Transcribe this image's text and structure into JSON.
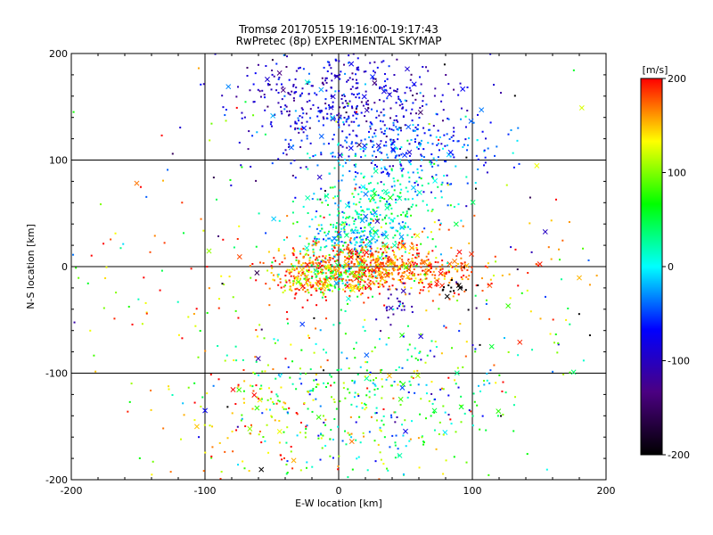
{
  "chart_data": {
    "type": "scatter",
    "title": "Tromsø 20170515 19:16:00-19:17:43",
    "subtitle": "RwPretec (8p) EXPERIMENTAL SKYMAP",
    "xlabel": "E-W location [km]",
    "ylabel": "N-S location [km]",
    "xlim": [
      -200,
      200
    ],
    "ylim": [
      -200,
      200
    ],
    "x_ticks": [
      -200,
      -100,
      0,
      100,
      200
    ],
    "y_ticks": [
      -200,
      -100,
      0,
      100,
      200
    ],
    "x_tick_labels": [
      "-200",
      "-100",
      "0",
      "100",
      "200"
    ],
    "y_tick_labels": [
      "-200",
      "-100",
      "0",
      "100",
      "200"
    ],
    "grid": true,
    "grid_lines": [
      -100,
      0,
      100
    ],
    "colorbar": {
      "label": "[m/s]",
      "range": [
        -200,
        200
      ],
      "ticks": [
        200,
        100,
        0,
        -100,
        -200
      ],
      "tick_labels": [
        "200",
        "100",
        "0",
        "-100",
        "-200"
      ],
      "colormap": "rainbow",
      "colors": [
        "#000000",
        "#4b0082",
        "#0000ff",
        "#00ffff",
        "#00ff00",
        "#ffff00",
        "#ff0000"
      ]
    },
    "markers": {
      "small": "dot",
      "large": "x"
    },
    "clusters": [
      {
        "cx": 5,
        "cy": 160,
        "sx": 38,
        "sy": 22,
        "n": 420,
        "v": -95,
        "vsd": 30
      },
      {
        "cx": 40,
        "cy": 110,
        "sx": 40,
        "sy": 18,
        "n": 320,
        "v": -50,
        "vsd": 30
      },
      {
        "cx": 30,
        "cy": 60,
        "sx": 25,
        "sy": 20,
        "n": 240,
        "v": 20,
        "vsd": 30
      },
      {
        "cx": 10,
        "cy": 25,
        "sx": 18,
        "sy": 14,
        "n": 220,
        "v": 10,
        "vsd": 35
      },
      {
        "cx": 15,
        "cy": 0,
        "sx": 30,
        "sy": 12,
        "n": 560,
        "v": 170,
        "vsd": 35
      },
      {
        "cx": 60,
        "cy": -5,
        "sx": 30,
        "sy": 10,
        "n": 180,
        "v": 175,
        "vsd": 20
      },
      {
        "cx": -25,
        "cy": -15,
        "sx": 15,
        "sy": 8,
        "n": 120,
        "v": 160,
        "vsd": 40
      },
      {
        "cx": 0,
        "cy": -10,
        "sx": 14,
        "sy": 10,
        "n": 110,
        "v": 60,
        "vsd": 50
      },
      {
        "cx": 25,
        "cy": -120,
        "sx": 55,
        "sy": 35,
        "n": 380,
        "v": 40,
        "vsd": 70
      },
      {
        "cx": -60,
        "cy": -150,
        "sx": 40,
        "sy": 30,
        "n": 120,
        "v": 150,
        "vsd": 50
      },
      {
        "cx": -100,
        "cy": -20,
        "sx": 60,
        "sy": 60,
        "n": 90,
        "v": 150,
        "vsd": 60
      },
      {
        "cx": 100,
        "cy": -30,
        "sx": 50,
        "sy": 60,
        "n": 90,
        "v": 140,
        "vsd": 70
      },
      {
        "cx": 45,
        "cy": -40,
        "sx": 8,
        "sy": 10,
        "n": 25,
        "v": -110,
        "vsd": 10
      },
      {
        "cx": 85,
        "cy": -20,
        "sx": 5,
        "sy": 3,
        "n": 15,
        "v": -200,
        "vsd": 5
      },
      {
        "cx": 0,
        "cy": 0,
        "sx": 120,
        "sy": 120,
        "n": 200,
        "v": 0,
        "vsd": 140
      }
    ]
  }
}
